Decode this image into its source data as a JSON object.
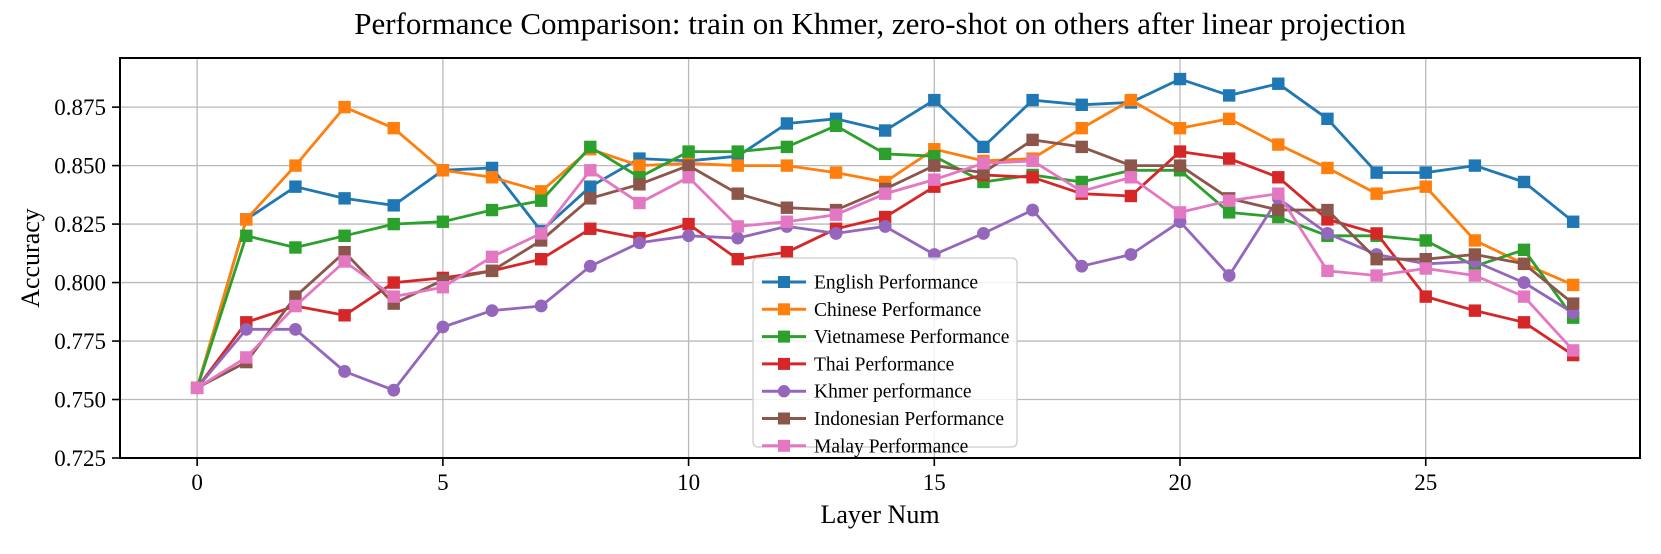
{
  "figure": {
    "background": "#ffffff",
    "grid_color": "#bababa",
    "spine_color": "#000000",
    "legend_frame_color": "#cccccc",
    "legend_background": "rgba(255,255,255,0.82)"
  },
  "chart_data": {
    "type": "line",
    "title": "Performance Comparison: train on Khmer, zero-shot on others after linear projection",
    "xlabel": "Layer Num",
    "ylabel": "Accuracy",
    "grid": true,
    "legend_position": "inside-center-bottom",
    "xlim": [
      -1.57,
      29.36
    ],
    "ylim": [
      0.725,
      0.896
    ],
    "xticks": [
      0,
      5,
      10,
      15,
      20,
      25
    ],
    "yticks": [
      0.725,
      0.75,
      0.775,
      0.8,
      0.825,
      0.85,
      0.875
    ],
    "x": [
      0,
      1,
      2,
      3,
      4,
      5,
      6,
      7,
      8,
      9,
      10,
      11,
      12,
      13,
      14,
      15,
      16,
      17,
      18,
      19,
      20,
      21,
      22,
      23,
      24,
      25,
      26,
      27,
      28
    ],
    "series": [
      {
        "name": "English Performance",
        "color": "#1f77b4",
        "marker": "square",
        "values": [
          0.755,
          0.827,
          0.841,
          0.836,
          0.833,
          0.848,
          0.849,
          0.822,
          0.841,
          0.853,
          0.852,
          0.854,
          0.868,
          0.87,
          0.865,
          0.878,
          0.858,
          0.878,
          0.876,
          0.877,
          0.887,
          0.88,
          0.885,
          0.87,
          0.847,
          0.847,
          0.85,
          0.843,
          0.826
        ]
      },
      {
        "name": "Chinese Performance",
        "color": "#ff7f0e",
        "marker": "square",
        "values": [
          0.755,
          0.827,
          0.85,
          0.875,
          0.866,
          0.848,
          0.845,
          0.839,
          0.857,
          0.85,
          0.851,
          0.85,
          0.85,
          0.847,
          0.843,
          0.857,
          0.852,
          0.853,
          0.866,
          0.878,
          0.866,
          0.87,
          0.859,
          0.849,
          0.838,
          0.841,
          0.818,
          0.808,
          0.799
        ]
      },
      {
        "name": "Vietnamese Performance",
        "color": "#2ca02c",
        "marker": "square",
        "values": [
          0.755,
          0.82,
          0.815,
          0.82,
          0.825,
          0.826,
          0.831,
          0.835,
          0.858,
          0.845,
          0.856,
          0.856,
          0.858,
          0.867,
          0.855,
          0.854,
          0.843,
          0.846,
          0.843,
          0.848,
          0.848,
          0.83,
          0.828,
          0.82,
          0.82,
          0.818,
          0.807,
          0.814,
          0.785
        ]
      },
      {
        "name": "Thai Performance",
        "color": "#d62728",
        "marker": "square",
        "values": [
          0.755,
          0.783,
          0.79,
          0.786,
          0.8,
          0.802,
          0.805,
          0.81,
          0.823,
          0.819,
          0.825,
          0.81,
          0.813,
          0.823,
          0.828,
          0.841,
          0.846,
          0.845,
          0.838,
          0.837,
          0.856,
          0.853,
          0.845,
          0.827,
          0.821,
          0.794,
          0.788,
          0.783,
          0.769
        ]
      },
      {
        "name": "Khmer performance",
        "color": "#9467bd",
        "marker": "circle",
        "values": [
          0.755,
          0.78,
          0.78,
          0.762,
          0.754,
          0.781,
          0.788,
          0.79,
          0.807,
          0.817,
          0.82,
          0.819,
          0.824,
          0.821,
          0.824,
          0.812,
          0.821,
          0.831,
          0.807,
          0.812,
          0.826,
          0.803,
          0.836,
          0.821,
          0.812,
          0.808,
          0.809,
          0.8,
          0.787
        ]
      },
      {
        "name": "Indonesian Performance",
        "color": "#8c564b",
        "marker": "square",
        "values": [
          0.755,
          0.766,
          0.794,
          0.813,
          0.791,
          0.801,
          0.805,
          0.818,
          0.836,
          0.842,
          0.85,
          0.838,
          0.832,
          0.831,
          0.84,
          0.85,
          0.847,
          0.861,
          0.858,
          0.85,
          0.85,
          0.836,
          0.831,
          0.831,
          0.81,
          0.81,
          0.812,
          0.808,
          0.791
        ]
      },
      {
        "name": "Malay Performance",
        "color": "#e377c2",
        "marker": "square",
        "values": [
          0.755,
          0.768,
          0.79,
          0.809,
          0.794,
          0.798,
          0.811,
          0.821,
          0.848,
          0.834,
          0.845,
          0.824,
          0.826,
          0.829,
          0.838,
          0.844,
          0.851,
          0.852,
          0.839,
          0.845,
          0.83,
          0.835,
          0.838,
          0.805,
          0.803,
          0.806,
          0.803,
          0.794,
          0.771
        ]
      }
    ]
  }
}
